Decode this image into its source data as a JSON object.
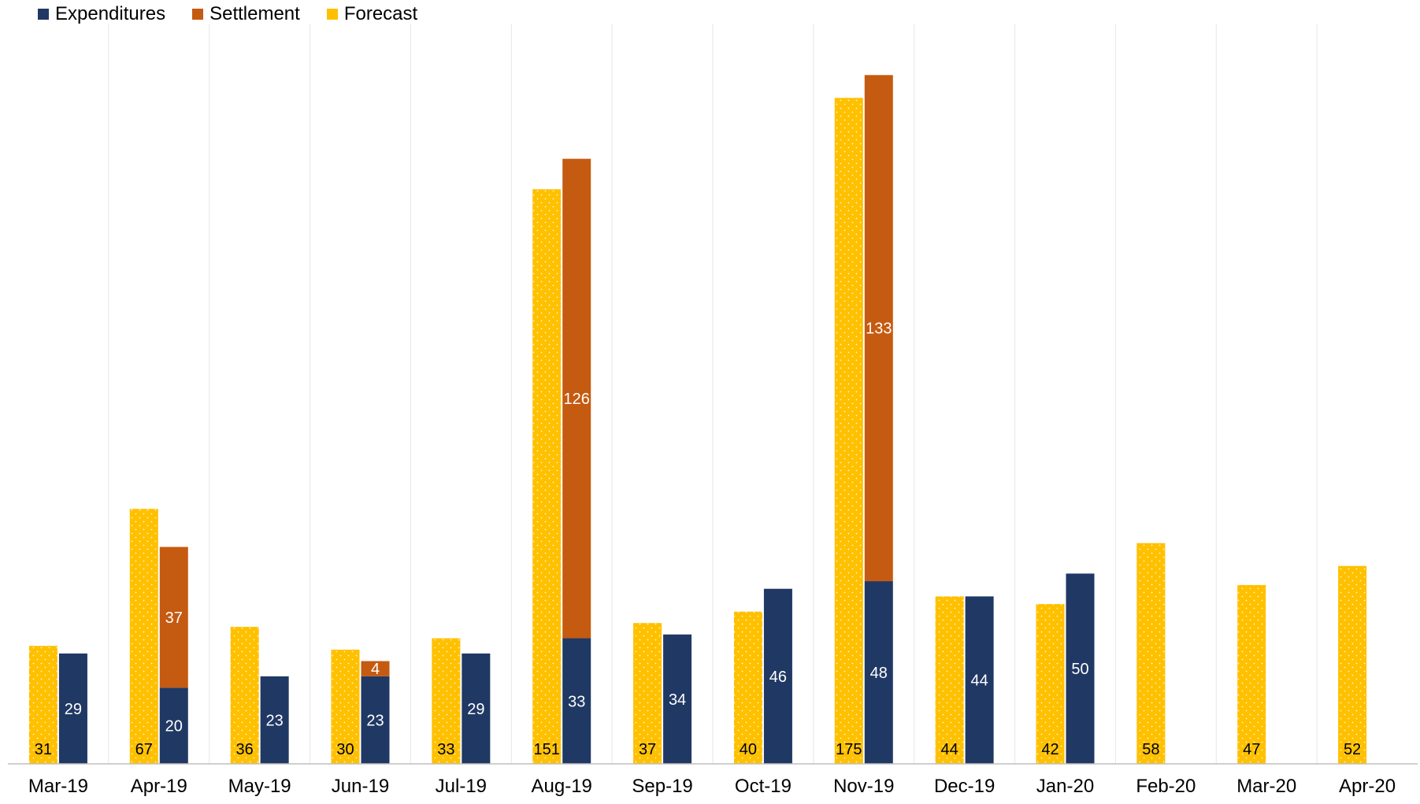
{
  "chart_data": {
    "type": "bar",
    "categories": [
      "Mar-19",
      "Apr-19",
      "May-19",
      "Jun-19",
      "Jul-19",
      "Aug-19",
      "Sep-19",
      "Oct-19",
      "Nov-19",
      "Dec-19",
      "Jan-20",
      "Feb-20",
      "Mar-20",
      "Apr-20"
    ],
    "series": [
      {
        "name": "Expenditures",
        "color": "#203864",
        "stack": "actual",
        "values": [
          29,
          20,
          23,
          23,
          29,
          33,
          34,
          46,
          48,
          44,
          50,
          null,
          null,
          null
        ]
      },
      {
        "name": "Settlement",
        "color": "#C55A11",
        "stack": "actual",
        "values": [
          null,
          37,
          null,
          4,
          null,
          126,
          null,
          null,
          133,
          null,
          null,
          null,
          null,
          null
        ]
      },
      {
        "name": "Forecast",
        "color": "#FFC000",
        "stack": "forecast",
        "values": [
          31,
          67,
          36,
          30,
          33,
          151,
          37,
          40,
          175,
          44,
          42,
          58,
          47,
          52
        ]
      }
    ],
    "title": "",
    "xlabel": "",
    "ylabel": "",
    "ylim": [
      0,
      185
    ],
    "grid": "vertical separators",
    "legend": "top-left",
    "data_label_colors": {
      "Expenditures": "#ffffff",
      "Settlement": "#ffffff",
      "Forecast": "#000000"
    }
  }
}
